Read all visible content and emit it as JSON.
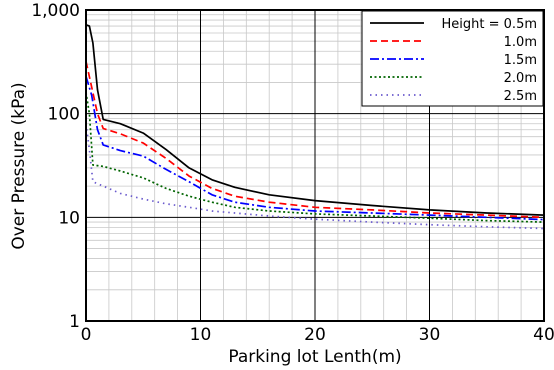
{
  "chart_data": {
    "type": "line",
    "xlabel": "Parking lot Lenth(m)",
    "ylabel": "Over Pressure (kPa)",
    "xlim": [
      0,
      40
    ],
    "ylim": [
      1,
      1000
    ],
    "yscale": "log",
    "grid": true,
    "legend_position": "top-right",
    "x_ticks": [
      0,
      10,
      20,
      30,
      40
    ],
    "x_tick_labels": [
      "0",
      "10",
      "20",
      "30",
      "40"
    ],
    "y_ticks": [
      1,
      10,
      100,
      1000
    ],
    "y_tick_labels": [
      "1",
      "10",
      "100",
      "1,000"
    ],
    "series": [
      {
        "name": "Height = 0.5m",
        "color": "#000000",
        "style": "solid",
        "points": [
          [
            0,
            720
          ],
          [
            0.3,
            700
          ],
          [
            0.6,
            480
          ],
          [
            1.0,
            170
          ],
          [
            1.5,
            88
          ],
          [
            3,
            80
          ],
          [
            5,
            65
          ],
          [
            7,
            45
          ],
          [
            9,
            30
          ],
          [
            11,
            23
          ],
          [
            13,
            19.5
          ],
          [
            16,
            16.5
          ],
          [
            20,
            14.5
          ],
          [
            25,
            13
          ],
          [
            30,
            11.8
          ],
          [
            35,
            11
          ],
          [
            40,
            10.5
          ]
        ]
      },
      {
        "name": "1.0m",
        "color": "#ff0000",
        "style": "dashed",
        "points": [
          [
            0,
            320
          ],
          [
            0.5,
            180
          ],
          [
            1.0,
            100
          ],
          [
            1.5,
            72
          ],
          [
            3,
            64
          ],
          [
            5,
            52
          ],
          [
            7,
            37
          ],
          [
            9,
            25
          ],
          [
            11,
            19
          ],
          [
            13,
            16
          ],
          [
            16,
            14
          ],
          [
            20,
            12.5
          ],
          [
            25,
            11.8
          ],
          [
            30,
            11
          ],
          [
            35,
            10.5
          ],
          [
            40,
            10
          ]
        ]
      },
      {
        "name": "1.5m",
        "color": "#0000ff",
        "style": "dashdot",
        "points": [
          [
            0,
            230
          ],
          [
            0.5,
            150
          ],
          [
            1.0,
            70
          ],
          [
            1.5,
            50
          ],
          [
            3,
            44
          ],
          [
            5,
            39
          ],
          [
            7,
            29
          ],
          [
            9,
            22
          ],
          [
            11,
            16.5
          ],
          [
            13,
            14
          ],
          [
            16,
            12.5
          ],
          [
            20,
            11.5
          ],
          [
            25,
            11
          ],
          [
            30,
            10.5
          ],
          [
            35,
            10
          ],
          [
            40,
            9.5
          ]
        ]
      },
      {
        "name": "2.0m",
        "color": "#006400",
        "style": "dotted",
        "points": [
          [
            0,
            160
          ],
          [
            0.3,
            100
          ],
          [
            0.6,
            32
          ],
          [
            1.5,
            31
          ],
          [
            3,
            28
          ],
          [
            5,
            24
          ],
          [
            7,
            19
          ],
          [
            9,
            16
          ],
          [
            11,
            14
          ],
          [
            13,
            12.5
          ],
          [
            16,
            11.5
          ],
          [
            20,
            10.8
          ],
          [
            25,
            10.3
          ],
          [
            30,
            9.8
          ],
          [
            35,
            9.3
          ],
          [
            40,
            9
          ]
        ]
      },
      {
        "name": "2.5m",
        "color": "#6a5acd",
        "style": "sparse-dotted",
        "points": [
          [
            0,
            80
          ],
          [
            0.3,
            45
          ],
          [
            0.6,
            22
          ],
          [
            1.5,
            20
          ],
          [
            3,
            17
          ],
          [
            5,
            15
          ],
          [
            7,
            13.5
          ],
          [
            9,
            12.5
          ],
          [
            11,
            11.5
          ],
          [
            13,
            11
          ],
          [
            16,
            10.3
          ],
          [
            20,
            9.6
          ],
          [
            25,
            9
          ],
          [
            30,
            8.5
          ],
          [
            35,
            8.1
          ],
          [
            40,
            7.8
          ]
        ]
      }
    ]
  }
}
